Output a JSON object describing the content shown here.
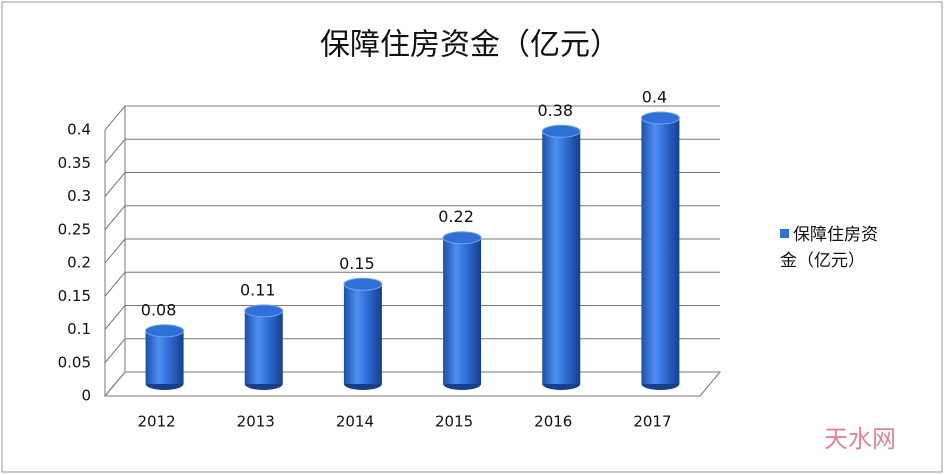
{
  "chart_data": {
    "type": "bar3d",
    "title": "保障住房资金（亿元）",
    "categories": [
      "2012",
      "2013",
      "2014",
      "2015",
      "2016",
      "2017"
    ],
    "series": [
      {
        "name": "保障住房资金（亿元）",
        "color": "#2f6fd6",
        "values": [
          0.08,
          0.11,
          0.15,
          0.22,
          0.38,
          0.4
        ]
      }
    ],
    "ylim": [
      0,
      0.4
    ],
    "yticks": [
      0,
      0.05,
      0.1,
      0.15,
      0.2,
      0.25,
      0.3,
      0.35,
      0.4
    ],
    "grid": true,
    "legend": "right",
    "watermark": "天水网"
  }
}
